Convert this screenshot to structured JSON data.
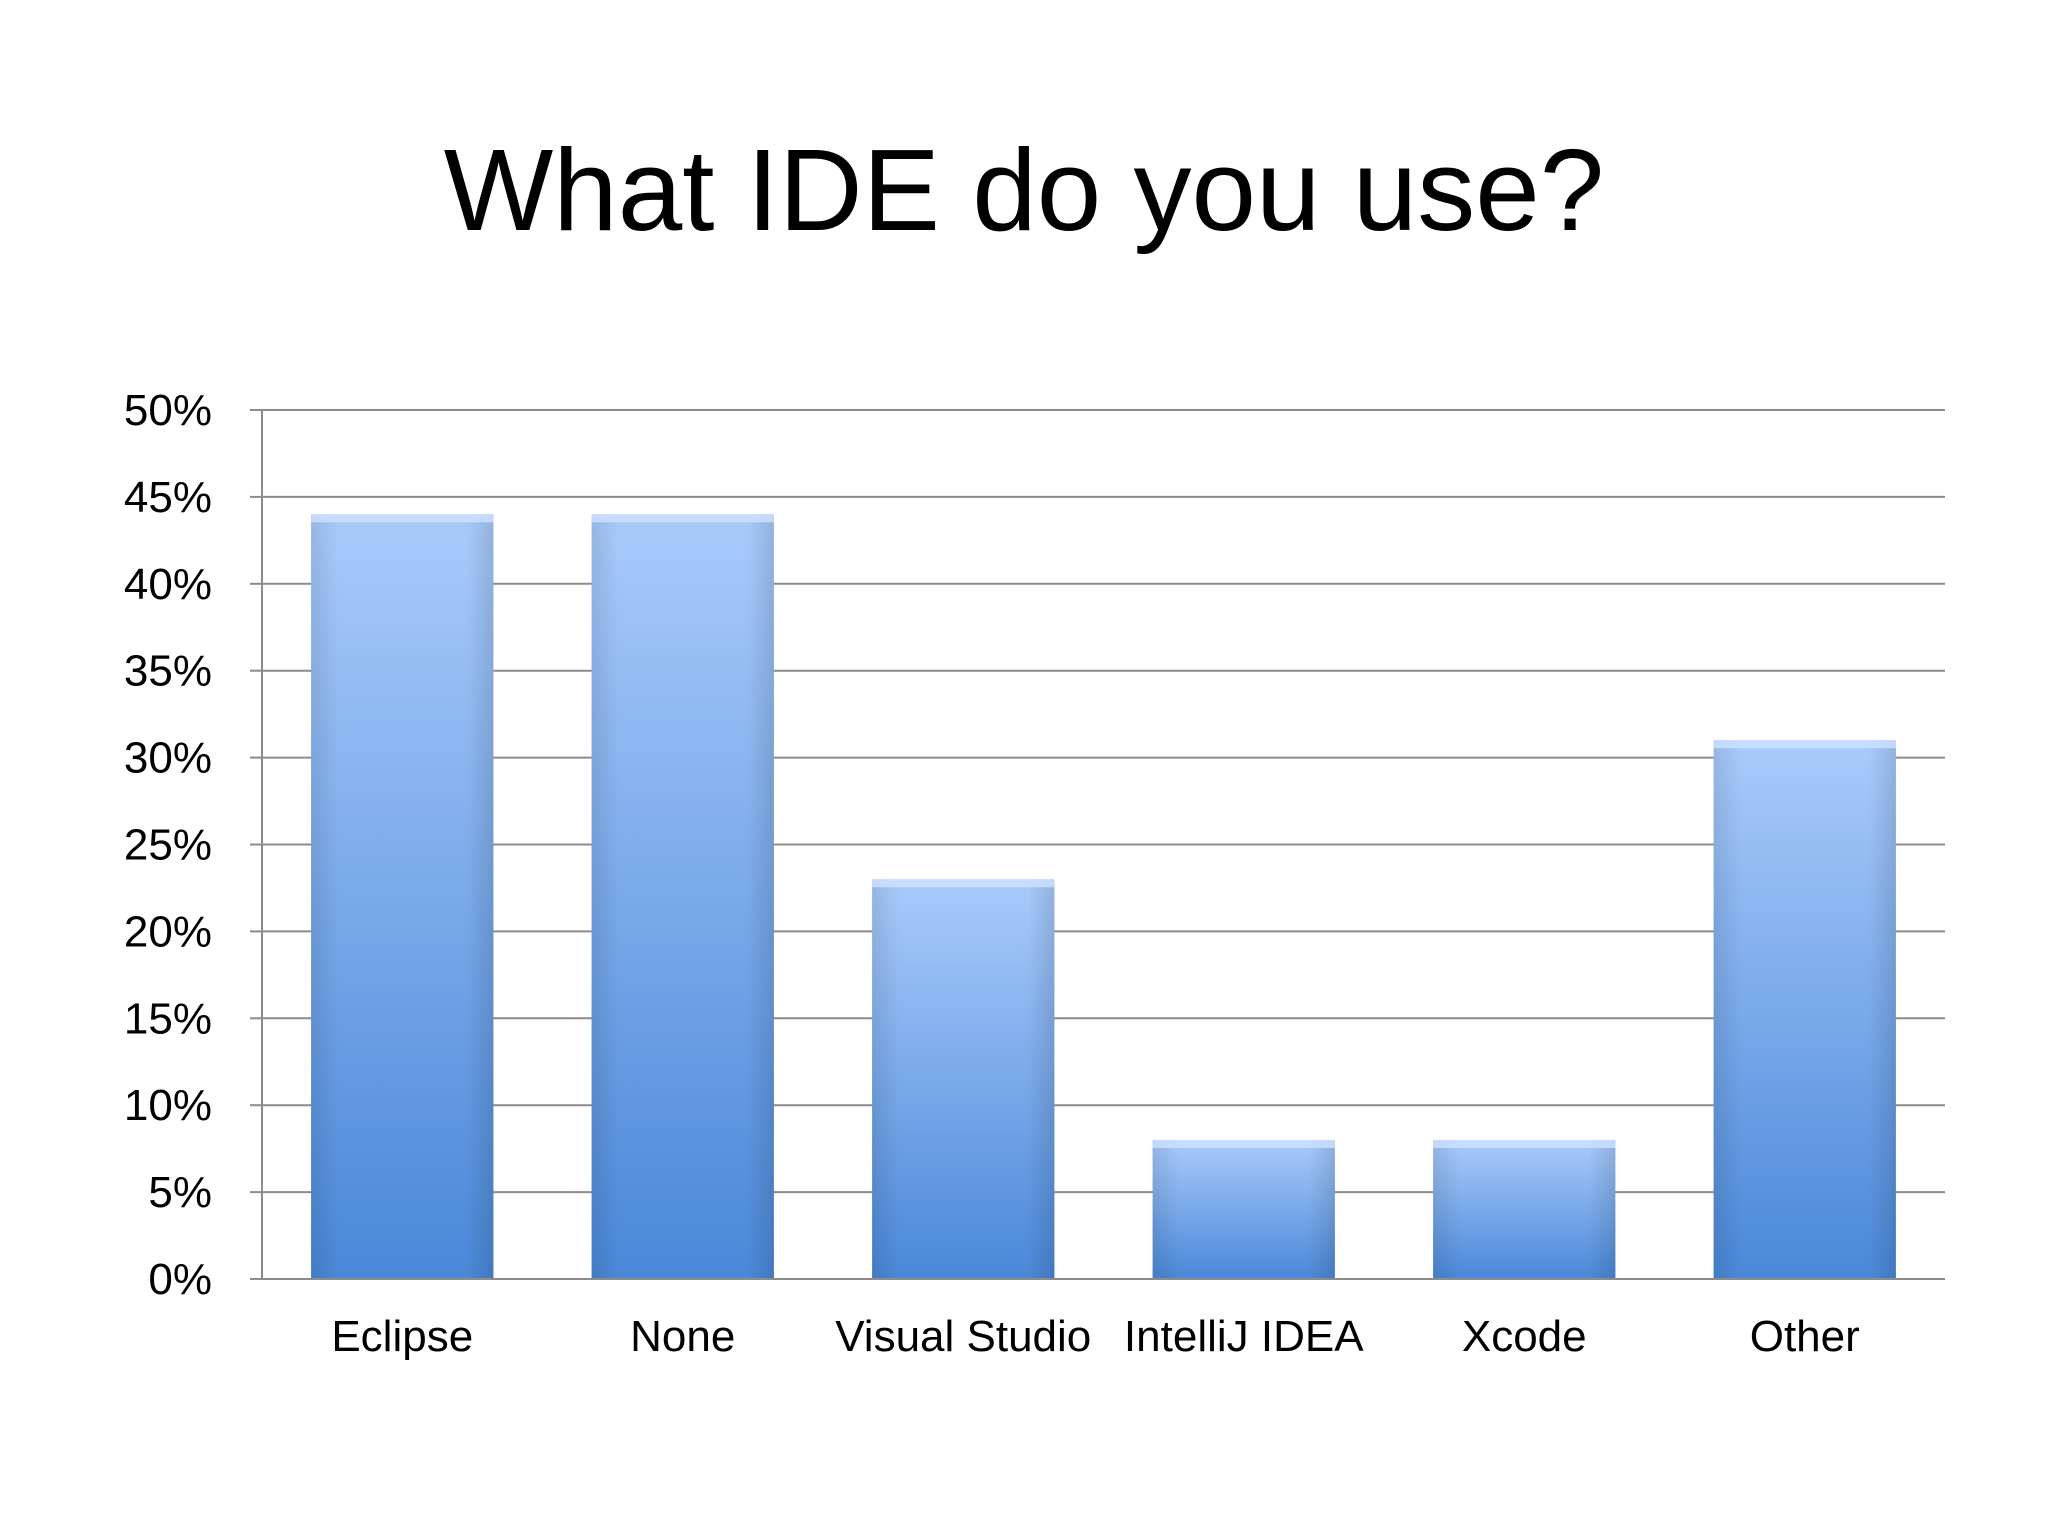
{
  "slide": {
    "title": "What IDE do you use?"
  },
  "colors": {
    "bar_top": "#a9cbfb",
    "bar_bottom": "#4a88d8",
    "gridline": "#8c8c8c",
    "axis": "#8c8c8c",
    "text": "#000000"
  },
  "chart_data": {
    "type": "bar",
    "title": "",
    "xlabel": "",
    "ylabel": "",
    "categories": [
      "Eclipse",
      "None",
      "Visual Studio",
      "IntelliJ IDEA",
      "Xcode",
      "Other"
    ],
    "values": [
      44,
      44,
      23,
      8,
      8,
      31
    ],
    "ylim": [
      0,
      50
    ],
    "ytick_step": 5,
    "ytick_labels": [
      "0%",
      "5%",
      "10%",
      "15%",
      "20%",
      "25%",
      "30%",
      "35%",
      "40%",
      "45%",
      "50%"
    ],
    "grid": true,
    "legend": "none"
  }
}
